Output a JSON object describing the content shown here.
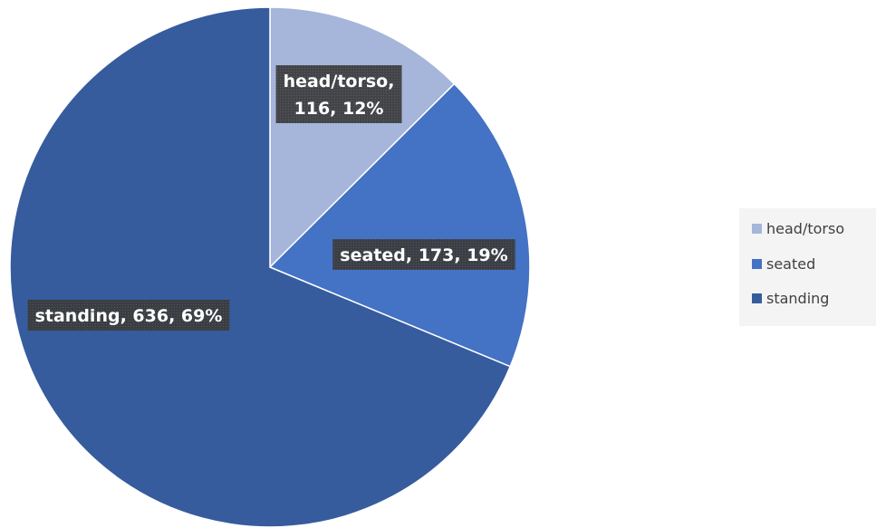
{
  "chart_data": {
    "type": "pie",
    "categories": [
      "head/torso",
      "seated",
      "standing"
    ],
    "values": [
      116,
      173,
      636
    ],
    "percents": [
      12,
      19,
      69
    ],
    "colors": [
      "#A6B5DA",
      "#4472C4",
      "#365C9E"
    ],
    "data_labels": [
      "head/torso,\n116, 12%",
      "seated, 173, 19%",
      "standing, 636, 69%"
    ],
    "legend": {
      "position": "right",
      "entries": [
        "head/torso",
        "seated",
        "standing"
      ]
    },
    "title": ""
  }
}
